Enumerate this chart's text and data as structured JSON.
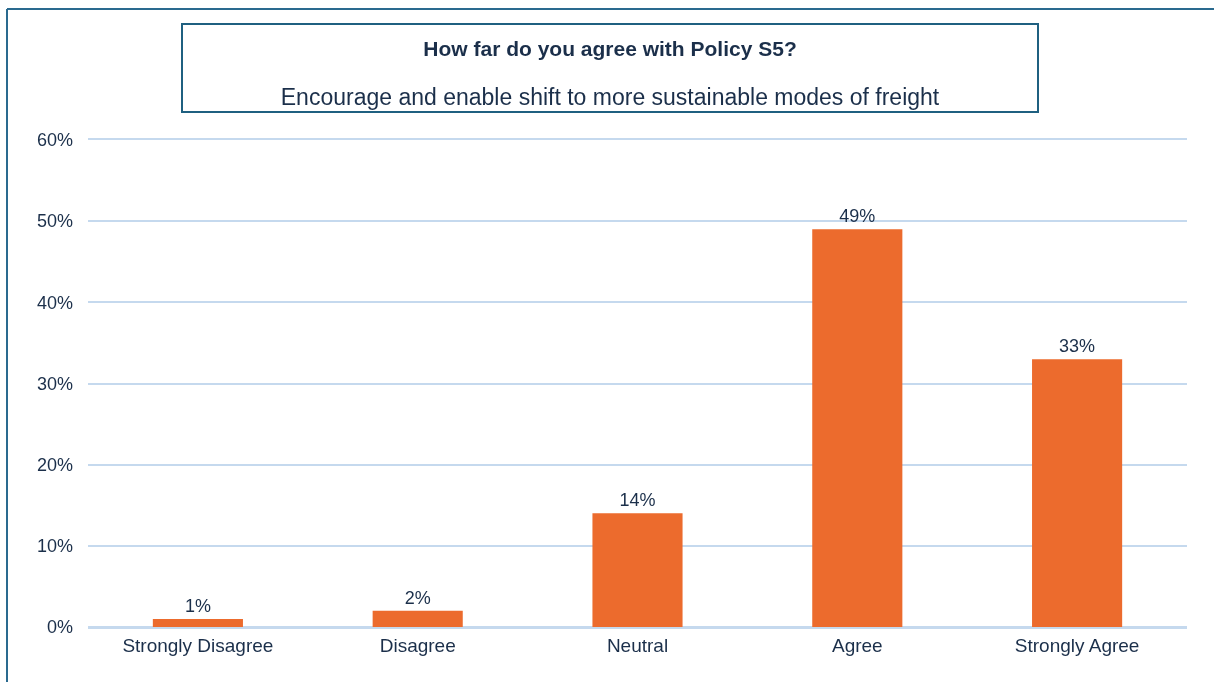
{
  "chart_data": {
    "type": "bar",
    "title": "How far do you agree with Policy S5?",
    "subtitle": "Encourage and enable shift to more sustainable modes of freight",
    "categories": [
      "Strongly Disagree",
      "Disagree",
      "Neutral",
      "Agree",
      "Strongly Agree"
    ],
    "values": [
      1,
      2,
      14,
      49,
      33
    ],
    "value_labels": [
      "1%",
      "2%",
      "14%",
      "49%",
      "33%"
    ],
    "color": "#ec6b2d",
    "ylim": [
      0,
      60
    ],
    "yticks": [
      {
        "value": 0,
        "label": "0%"
      },
      {
        "value": 10,
        "label": "10%"
      },
      {
        "value": 20,
        "label": "20%"
      },
      {
        "value": 30,
        "label": "30%"
      },
      {
        "value": 40,
        "label": "40%"
      },
      {
        "value": 50,
        "label": "50%"
      },
      {
        "value": 60,
        "label": "60%"
      }
    ],
    "grid": "y"
  }
}
